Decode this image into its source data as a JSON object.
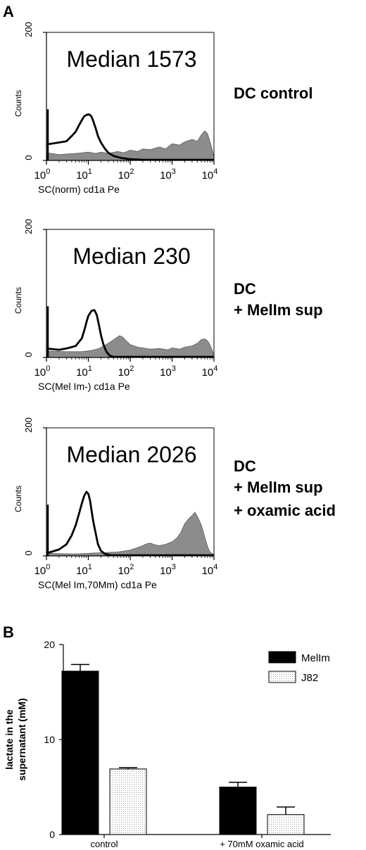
{
  "panel_a_letter": "A",
  "panel_b_letter": "B",
  "chart_data": [
    {
      "type": "area",
      "id": "hist1",
      "x_scale": "log",
      "xlim": [
        1,
        10000
      ],
      "ylim": [
        0,
        200
      ],
      "ylabel": "Counts",
      "xlabel": "SC(norm)  cd1a  Pe",
      "x_ticks": [
        {
          "base": "10",
          "exp": "0"
        },
        {
          "base": "10",
          "exp": "1"
        },
        {
          "base": "10",
          "exp": "2"
        },
        {
          "base": "10",
          "exp": "3"
        },
        {
          "base": "10",
          "exp": "4"
        }
      ],
      "y_ticks": [
        "0",
        "200"
      ],
      "median_label": "Median 1573",
      "condition_lines": [
        "DC control"
      ],
      "series": [
        {
          "style": "open-line",
          "points": [
            [
              1,
              25
            ],
            [
              2,
              28
            ],
            [
              3,
              30
            ],
            [
              4,
              38
            ],
            [
              5,
              45
            ],
            [
              6,
              55
            ],
            [
              7,
              63
            ],
            [
              8,
              69
            ],
            [
              9,
              71
            ],
            [
              10,
              72
            ],
            [
              11,
              71
            ],
            [
              12,
              68
            ],
            [
              13,
              62
            ],
            [
              15,
              50
            ],
            [
              17,
              38
            ],
            [
              20,
              28
            ],
            [
              25,
              18
            ],
            [
              30,
              12
            ],
            [
              40,
              7
            ],
            [
              60,
              4
            ],
            [
              100,
              2
            ],
            [
              200,
              1
            ],
            [
              1000,
              1
            ],
            [
              10000,
              1
            ]
          ]
        },
        {
          "style": "filled-gray",
          "points": [
            [
              1,
              12
            ],
            [
              2,
              9
            ],
            [
              3,
              10
            ],
            [
              5,
              11
            ],
            [
              7,
              12
            ],
            [
              10,
              13
            ],
            [
              15,
              11
            ],
            [
              20,
              13
            ],
            [
              30,
              11
            ],
            [
              50,
              14
            ],
            [
              70,
              12
            ],
            [
              100,
              16
            ],
            [
              150,
              14
            ],
            [
              200,
              18
            ],
            [
              300,
              17
            ],
            [
              500,
              21
            ],
            [
              700,
              18
            ],
            [
              1000,
              26
            ],
            [
              1500,
              24
            ],
            [
              2000,
              29
            ],
            [
              3000,
              33
            ],
            [
              4000,
              30
            ],
            [
              5000,
              40
            ],
            [
              6000,
              46
            ],
            [
              7000,
              42
            ],
            [
              8000,
              30
            ],
            [
              9000,
              18
            ],
            [
              10000,
              5
            ]
          ]
        }
      ]
    },
    {
      "type": "area",
      "id": "hist2",
      "x_scale": "log",
      "xlim": [
        1,
        10000
      ],
      "ylim": [
        0,
        200
      ],
      "ylabel": "Counts",
      "xlabel": "SC(Mel Im-)  cd1a  Pe",
      "x_ticks": [
        {
          "base": "10",
          "exp": "0"
        },
        {
          "base": "10",
          "exp": "1"
        },
        {
          "base": "10",
          "exp": "2"
        },
        {
          "base": "10",
          "exp": "3"
        },
        {
          "base": "10",
          "exp": "4"
        }
      ],
      "y_ticks": [
        "0",
        "200"
      ],
      "median_label": "Median 230",
      "condition_lines": [
        "DC",
        "+ MelIm sup"
      ],
      "series": [
        {
          "style": "open-line",
          "points": [
            [
              1,
              14
            ],
            [
              2,
              12
            ],
            [
              3,
              14
            ],
            [
              5,
              18
            ],
            [
              7,
              30
            ],
            [
              8,
              42
            ],
            [
              9,
              55
            ],
            [
              10,
              65
            ],
            [
              12,
              73
            ],
            [
              14,
              74
            ],
            [
              16,
              66
            ],
            [
              18,
              50
            ],
            [
              20,
              35
            ],
            [
              23,
              20
            ],
            [
              27,
              9
            ],
            [
              32,
              3
            ],
            [
              40,
              1
            ],
            [
              100,
              1
            ],
            [
              10000,
              1
            ]
          ]
        },
        {
          "style": "filled-gray",
          "points": [
            [
              1,
              10
            ],
            [
              3,
              9
            ],
            [
              7,
              9
            ],
            [
              12,
              11
            ],
            [
              18,
              14
            ],
            [
              25,
              19
            ],
            [
              35,
              25
            ],
            [
              45,
              30
            ],
            [
              55,
              34
            ],
            [
              65,
              32
            ],
            [
              80,
              26
            ],
            [
              100,
              20
            ],
            [
              150,
              16
            ],
            [
              200,
              15
            ],
            [
              300,
              13
            ],
            [
              500,
              14
            ],
            [
              800,
              12
            ],
            [
              1000,
              15
            ],
            [
              1500,
              13
            ],
            [
              2000,
              16
            ],
            [
              3000,
              18
            ],
            [
              4000,
              22
            ],
            [
              5000,
              28
            ],
            [
              6000,
              29
            ],
            [
              7000,
              26
            ],
            [
              8000,
              20
            ],
            [
              9000,
              12
            ],
            [
              10000,
              4
            ]
          ]
        }
      ]
    },
    {
      "type": "area",
      "id": "hist3",
      "x_scale": "log",
      "xlim": [
        1,
        10000
      ],
      "ylim": [
        0,
        200
      ],
      "ylabel": "Counts",
      "xlabel": "SC(Mel Im,70Mm)  cd1a  Pe",
      "x_ticks": [
        {
          "base": "10",
          "exp": "0"
        },
        {
          "base": "10",
          "exp": "1"
        },
        {
          "base": "10",
          "exp": "2"
        },
        {
          "base": "10",
          "exp": "3"
        },
        {
          "base": "10",
          "exp": "4"
        }
      ],
      "y_ticks": [
        "0",
        "200"
      ],
      "median_label": "Median 2026",
      "condition_lines": [
        "DC",
        "+ MelIm sup",
        "+ oxamic acid"
      ],
      "series": [
        {
          "style": "open-line",
          "points": [
            [
              1,
              4
            ],
            [
              2,
              10
            ],
            [
              3,
              18
            ],
            [
              4,
              32
            ],
            [
              5,
              48
            ],
            [
              6,
              66
            ],
            [
              7,
              82
            ],
            [
              8,
              94
            ],
            [
              9,
              100
            ],
            [
              10,
              97
            ],
            [
              11,
              86
            ],
            [
              12,
              70
            ],
            [
              13,
              55
            ],
            [
              15,
              35
            ],
            [
              17,
              18
            ],
            [
              20,
              8
            ],
            [
              25,
              3
            ],
            [
              35,
              1
            ],
            [
              100,
              1
            ],
            [
              10000,
              1
            ]
          ]
        },
        {
          "style": "filled-gray",
          "points": [
            [
              1,
              4
            ],
            [
              5,
              3
            ],
            [
              10,
              4
            ],
            [
              20,
              5
            ],
            [
              50,
              6
            ],
            [
              100,
              9
            ],
            [
              150,
              13
            ],
            [
              200,
              16
            ],
            [
              250,
              19
            ],
            [
              300,
              20
            ],
            [
              400,
              17
            ],
            [
              500,
              16
            ],
            [
              700,
              18
            ],
            [
              1000,
              22
            ],
            [
              1300,
              28
            ],
            [
              1600,
              36
            ],
            [
              2000,
              50
            ],
            [
              2500,
              58
            ],
            [
              3000,
              63
            ],
            [
              3500,
              68
            ],
            [
              4000,
              62
            ],
            [
              5000,
              48
            ],
            [
              6000,
              30
            ],
            [
              7000,
              15
            ],
            [
              8000,
              6
            ],
            [
              10000,
              2
            ]
          ]
        }
      ]
    },
    {
      "type": "bar",
      "id": "bars",
      "categories": [
        "control",
        "+ 70mM oxamic acid"
      ],
      "series": [
        {
          "name": "MelIm",
          "values": [
            17.2,
            5.0
          ],
          "errors": [
            0.7,
            0.5
          ],
          "fill": "#000000"
        },
        {
          "name": "J82",
          "values": [
            6.9,
            2.1
          ],
          "errors": [
            0.15,
            0.8
          ],
          "fill": "dotted"
        }
      ],
      "ylabel_lines": [
        "lactate in the",
        "supernatant (mM)"
      ],
      "y_ticks": [
        "0",
        "10",
        "20"
      ],
      "ylim": [
        0,
        20
      ],
      "legend": "top-right"
    }
  ]
}
